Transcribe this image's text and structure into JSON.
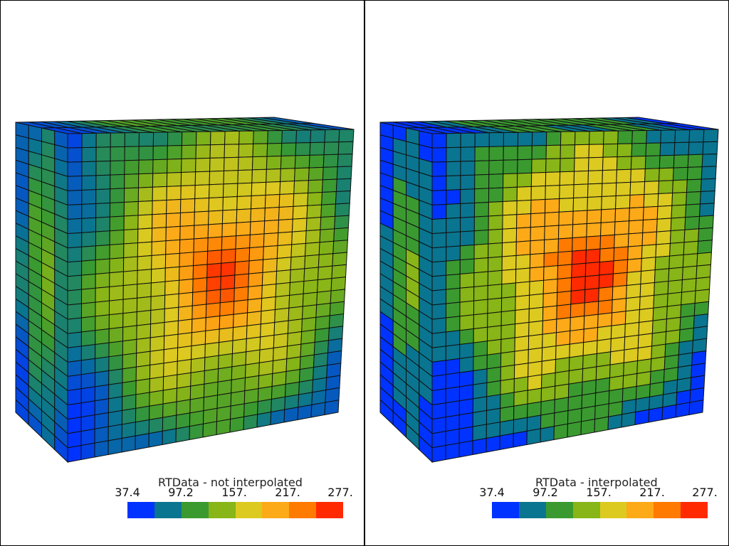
{
  "panels": [
    {
      "title": "RTData - not interpolated",
      "interpolated": false
    },
    {
      "title": "RTData - interpolated",
      "interpolated": true
    }
  ],
  "colorbar": {
    "labels": [
      "37.4",
      "97.2",
      "157.",
      "217.",
      "277."
    ],
    "range": [
      37.4,
      277
    ],
    "colors": [
      "#0033ff",
      "#0a7590",
      "#3a9a30",
      "#88b517",
      "#dcca20",
      "#fcaa18",
      "#ff7a00",
      "#ff2a00"
    ]
  }
}
